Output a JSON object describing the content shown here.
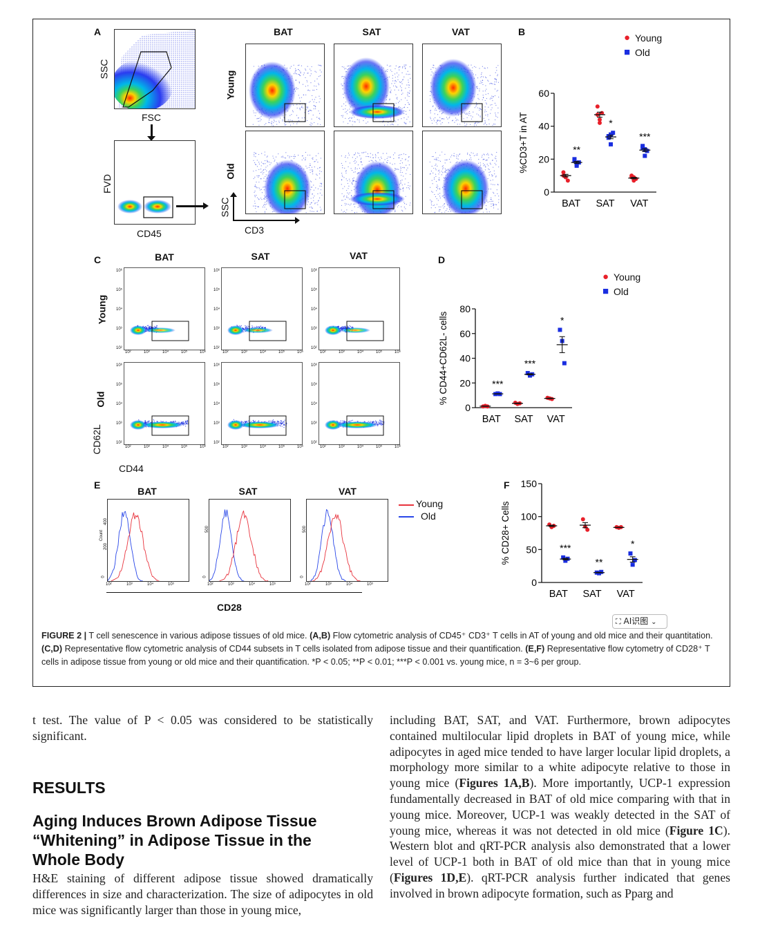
{
  "panel_a": {
    "letter": "A",
    "gate_ssc": "SSC",
    "gate_fsc": "FSC",
    "fvd": "FVD",
    "cd45": "CD45",
    "col_headers": [
      "BAT",
      "SAT",
      "VAT"
    ],
    "row_young": "Young",
    "row_old": "Old",
    "axis_y": "SSC",
    "axis_x": "CD3"
  },
  "panel_c": {
    "letter": "C",
    "col_headers": [
      "BAT",
      "SAT",
      "VAT"
    ],
    "row_young": "Young",
    "row_old": "Old",
    "axis_y": "CD62L",
    "axis_x": "CD44",
    "tick_x": [
      "10²",
      "10³",
      "10⁴",
      "10⁵",
      "10⁶"
    ],
    "tick_y": [
      "10⁶",
      "10⁵",
      "10⁴",
      "10³",
      "10²"
    ]
  },
  "panel_e": {
    "letter": "E",
    "col_headers": [
      "BAT",
      "SAT",
      "VAT"
    ],
    "axis_x": "CD28",
    "count_label": "Count",
    "legend_young": "Young",
    "legend_old": "Old",
    "y_ticks_bat": [
      "0",
      "200",
      "400"
    ],
    "y_ticks_other": [
      "0",
      "500"
    ],
    "tick_x": [
      "10²",
      "10³",
      "10⁴",
      "10⁵"
    ],
    "young_color": "#e8323c",
    "old_color": "#2846e8"
  },
  "legend": {
    "young": "Young",
    "old": "Old",
    "young_color": "#e8202a",
    "old_color": "#1a2ee0"
  },
  "chart_data": [
    {
      "panel": "B",
      "type": "scatter",
      "categories": [
        "BAT",
        "SAT",
        "VAT"
      ],
      "ylabel": "%CD3+T in AT",
      "ylim": [
        0,
        60
      ],
      "yticks": [
        0,
        20,
        40,
        60
      ],
      "series": [
        {
          "name": "Young",
          "points": [
            [
              10,
              9,
              7,
              12,
              9
            ],
            [
              52,
              44,
              48,
              47,
              42
            ],
            [
              9,
              7,
              8,
              10,
              9
            ]
          ],
          "mean": [
            10,
            47,
            8.5
          ]
        },
        {
          "name": "Old",
          "points": [
            [
              19,
              16,
              18,
              20,
              17
            ],
            [
              34,
              29,
              36,
              33,
              35
            ],
            [
              27,
              22,
              25,
              28,
              26
            ]
          ],
          "mean": [
            18,
            33.5,
            25.5
          ]
        }
      ],
      "significance": [
        "**",
        "*",
        "***"
      ]
    },
    {
      "panel": "D",
      "type": "scatter",
      "categories": [
        "BAT",
        "SAT",
        "VAT"
      ],
      "ylabel": "% CD44+CD62L- cells",
      "ylim": [
        0,
        80
      ],
      "yticks": [
        0,
        20,
        40,
        60,
        80
      ],
      "series": [
        {
          "name": "Young",
          "points": [
            [
              1,
              1.5,
              1
            ],
            [
              4,
              3,
              3.5
            ],
            [
              8,
              7.5,
              7
            ]
          ],
          "mean": [
            1.2,
            3.5,
            7.5
          ]
        },
        {
          "name": "Old",
          "points": [
            [
              11,
              11.5,
              11
            ],
            [
              28,
              26,
              27
            ],
            [
              63,
              54,
              36
            ]
          ],
          "mean": [
            11.2,
            27,
            51
          ]
        }
      ],
      "significance": [
        "***",
        "***",
        "*"
      ]
    },
    {
      "panel": "F",
      "type": "scatter",
      "categories": [
        "BAT",
        "SAT",
        "VAT"
      ],
      "ylabel": "% CD28+ Cells",
      "ylim": [
        0,
        150
      ],
      "yticks": [
        0,
        50,
        100,
        150
      ],
      "series": [
        {
          "name": "Young",
          "points": [
            [
              88,
              84,
              86
            ],
            [
              96,
              85,
              80
            ],
            [
              84,
              83,
              84
            ]
          ],
          "mean": [
            86,
            87,
            83.5
          ]
        },
        {
          "name": "Old",
          "points": [
            [
              38,
              33,
              36
            ],
            [
              15,
              14,
              16
            ],
            [
              44,
              27,
              34
            ]
          ],
          "mean": [
            35.5,
            15,
            35
          ]
        }
      ],
      "significance": [
        "***",
        "**",
        "*"
      ]
    }
  ],
  "ai_button": {
    "label": "AI识图",
    "chevron": "⌄"
  },
  "caption": {
    "fig": "FIGURE 2 |",
    "t1": " T cell senescence in various adipose tissues of old mice. ",
    "ab": "(A,B)",
    "t2": " Flow cytometric analysis of CD45⁺ CD3⁺ T cells in AT of young and old mice and their quantitation. ",
    "cd": "(C,D)",
    "t3": " Representative flow cytometric analysis of CD44 subsets in T cells isolated from adipose tissue and their quantification. ",
    "ef": "(E,F)",
    "t4": " Representative flow cytometry of CD28⁺ T cells in adipose tissue from young or old mice and their quantification. *P < 0.05; **P < 0.01; ***P < 0.001 vs. young mice, n = 3~6 per group."
  },
  "body": {
    "left_para1": "t test. The value of P < 0.05 was considered to be statistically significant.",
    "results": "RESULTS",
    "subhead": "Aging Induces Brown Adipose Tissue “Whitening” in Adipose Tissue in the Whole Body",
    "left_para2": "H&E staining of different adipose tissue showed dramatically differences in size and characterization. The size of adipocytes in old mice was significantly larger than those in young mice,",
    "right_para_a": "including BAT, SAT, and VAT. Furthermore, brown adipocytes contained multilocular lipid droplets in BAT of young mice, while adipocytes in aged mice tended to have larger locular lipid droplets, a morphology more similar to a white adipocyte relative to those in young mice (",
    "ref1": "Figures 1A,B",
    "right_para_b": "). More importantly, UCP-1 expression fundamentally decreased in BAT of old mice comparing with that in young mice. Moreover, UCP-1 was weakly detected in the SAT of young mice, whereas it was not detected in old mice (",
    "ref2": "Figure 1C",
    "right_para_c": "). Western blot and qRT-PCR analysis also demonstrated that a lower level of UCP-1 both in BAT of old mice than that in young mice (",
    "ref3": "Figures 1D,E",
    "right_para_d": "). qRT-PCR analysis further indicated that genes involved in brown adipocyte formation, such as Pparg and"
  }
}
